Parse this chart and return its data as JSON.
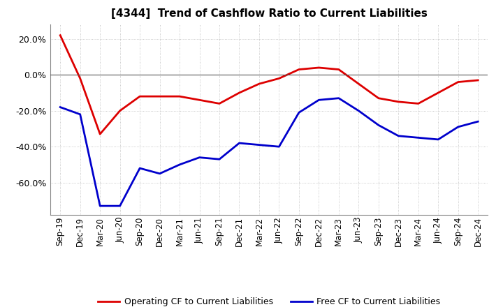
{
  "title": "[4344]  Trend of Cashflow Ratio to Current Liabilities",
  "x_labels": [
    "Sep-19",
    "Dec-19",
    "Mar-20",
    "Jun-20",
    "Sep-20",
    "Dec-20",
    "Mar-21",
    "Jun-21",
    "Sep-21",
    "Dec-21",
    "Mar-22",
    "Jun-22",
    "Sep-22",
    "Dec-22",
    "Mar-23",
    "Jun-23",
    "Sep-23",
    "Dec-23",
    "Mar-24",
    "Jun-24",
    "Sep-24",
    "Dec-24"
  ],
  "operating_cf": [
    0.22,
    -0.02,
    -0.33,
    -0.2,
    -0.12,
    -0.12,
    -0.12,
    -0.14,
    -0.16,
    -0.1,
    -0.05,
    -0.02,
    0.03,
    0.04,
    0.03,
    -0.05,
    -0.13,
    -0.15,
    -0.16,
    -0.1,
    -0.04,
    -0.03
  ],
  "free_cf": [
    -0.18,
    -0.22,
    -0.73,
    -0.73,
    -0.52,
    -0.55,
    -0.5,
    -0.46,
    -0.47,
    -0.38,
    -0.39,
    -0.4,
    -0.21,
    -0.14,
    -0.13,
    -0.2,
    -0.28,
    -0.34,
    -0.35,
    -0.36,
    -0.29,
    -0.26
  ],
  "operating_color": "#dd0000",
  "free_color": "#0000cc",
  "background_color": "#ffffff",
  "grid_color": "#bbbbbb",
  "ylim": [
    -0.78,
    0.28
  ],
  "yticks": [
    0.2,
    0.0,
    -0.2,
    -0.4,
    -0.6
  ],
  "legend_labels": [
    "Operating CF to Current Liabilities",
    "Free CF to Current Liabilities"
  ]
}
